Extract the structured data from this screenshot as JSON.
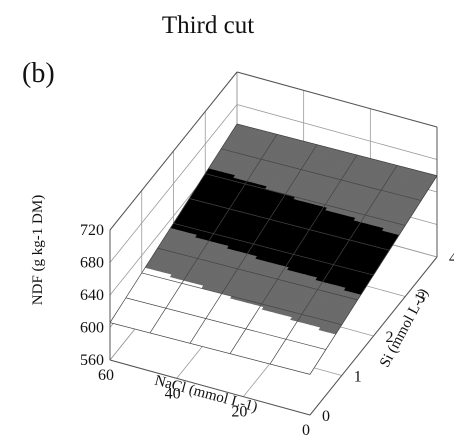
{
  "chart_data": {
    "type": "surface3d",
    "title": "Third cut",
    "panel_label": "(b)",
    "xlabel": "NaCl (mmol L-1)",
    "ylabel": "Si (mmol L-1)",
    "zlabel": "NDF (g kg-1 DM)",
    "x_ticks": [
      "0",
      "20",
      "40",
      "60"
    ],
    "y_ticks": [
      "0",
      "1",
      "2",
      "3",
      "4"
    ],
    "z_ticks": [
      "560",
      "600",
      "640",
      "680",
      "720"
    ],
    "xlim": [
      0,
      60
    ],
    "ylim": [
      0,
      4
    ],
    "zlim": [
      560,
      720
    ],
    "surface_corners": [
      {
        "nacl": 0,
        "si": 0,
        "ndf": 610
      },
      {
        "nacl": 0,
        "si": 4,
        "ndf": 660
      },
      {
        "nacl": 60,
        "si": 0,
        "ndf": 606
      },
      {
        "nacl": 60,
        "si": 4,
        "ndf": 656
      }
    ],
    "color_bands": [
      {
        "ndf_from": 600,
        "ndf_to": 620,
        "color": "#ffffff"
      },
      {
        "ndf_from": 620,
        "ndf_to": 630,
        "color": "#6b6b6b"
      },
      {
        "ndf_from": 630,
        "ndf_to": 645,
        "color": "#000000"
      },
      {
        "ndf_from": 645,
        "ndf_to": 670,
        "color": "#6b6b6b"
      }
    ],
    "grid": true
  }
}
